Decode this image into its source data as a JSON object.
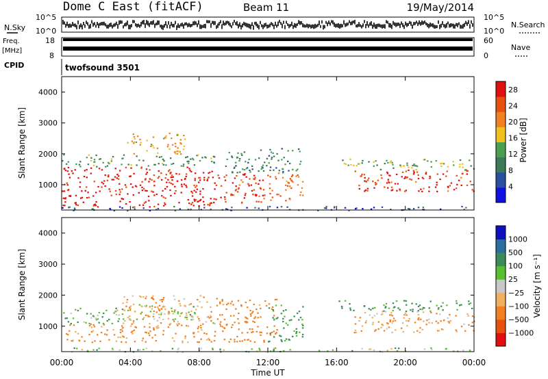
{
  "header": {
    "station": "Dome C East (fitACF)",
    "beam": "Beam 11",
    "date": "19/May/2014"
  },
  "noise_panel": {
    "left_label": "N.Sky",
    "right_label": "N.Search",
    "left_ticks": [
      "10^5",
      "10^0"
    ],
    "right_ticks": [
      "10^5",
      "10^0"
    ]
  },
  "freq_panel": {
    "left_label_top": "Freq.",
    "left_label_unit": "[MHz]",
    "right_label": "Nave",
    "left_ticks": [
      "18",
      "8"
    ],
    "right_ticks": [
      "60",
      "0"
    ]
  },
  "cpid": {
    "label": "CPID",
    "program": "twofsound 3501"
  },
  "colors": {
    "power_scale": [
      "#1010e0",
      "#2a4fa0",
      "#3c7a58",
      "#4aa050",
      "#f0c020",
      "#f08020",
      "#e85010",
      "#e01010"
    ],
    "velocity_scale": [
      "#e01010",
      "#e85010",
      "#f08020",
      "#f0b060",
      "#c8c8c8",
      "#58c030",
      "#3c8c5a",
      "#2a6fa0",
      "#1010c0"
    ]
  },
  "chart_data": [
    {
      "type": "heatmap",
      "panel": "power",
      "xlabel": "Time UT",
      "ylabel": "Slant Range [km]",
      "x_ticks": [
        "00:00",
        "04:00",
        "08:00",
        "12:00",
        "16:00",
        "20:00",
        "00:00"
      ],
      "x_range_hours": [
        0,
        24
      ],
      "y_ticks": [
        1000,
        2000,
        3000,
        4000
      ],
      "ylim": [
        180,
        4500
      ],
      "colorbar_label": "Power [dB]",
      "colorbar_ticks": [
        4,
        8,
        12,
        16,
        20,
        24,
        28
      ],
      "colorbar_range": [
        0,
        30
      ],
      "scatter_regions": [
        {
          "t_start": 0.0,
          "t_end": 9.0,
          "range_low": 300,
          "range_high": 1600,
          "value": 28
        },
        {
          "t_start": 0.0,
          "t_end": 9.0,
          "range_low": 1600,
          "range_high": 2000,
          "value": 12
        },
        {
          "t_start": 3.8,
          "t_end": 7.2,
          "range_low": 2000,
          "range_high": 2700,
          "value": 18
        },
        {
          "t_start": 9.0,
          "t_end": 12.0,
          "range_low": 400,
          "range_high": 1400,
          "value": 26
        },
        {
          "t_start": 9.5,
          "t_end": 14.0,
          "range_low": 1400,
          "range_high": 2200,
          "value": 10
        },
        {
          "t_start": 12.0,
          "t_end": 14.0,
          "range_low": 500,
          "range_high": 1400,
          "value": 22
        },
        {
          "t_start": 16.0,
          "t_end": 24.0,
          "range_low": 1500,
          "range_high": 1850,
          "value": 14
        },
        {
          "t_start": 17.0,
          "t_end": 24.0,
          "range_low": 800,
          "range_high": 1500,
          "value": 26
        },
        {
          "t_start": 0.0,
          "t_end": 24.0,
          "range_low": 180,
          "range_high": 320,
          "value": 6
        }
      ]
    },
    {
      "type": "heatmap",
      "panel": "velocity",
      "xlabel": "Time UT",
      "ylabel": "Slant Range [km]",
      "x_ticks": [
        "00:00",
        "04:00",
        "08:00",
        "12:00",
        "16:00",
        "20:00",
        "00:00"
      ],
      "x_range_hours": [
        0,
        24
      ],
      "y_ticks": [
        1000,
        2000,
        3000,
        4000
      ],
      "ylim": [
        180,
        4500
      ],
      "colorbar_label": "Velocity [m s⁻¹]",
      "colorbar_ticks": [
        "1000",
        "500",
        "100",
        "25",
        "−25",
        "−100",
        "−500",
        "−1000"
      ],
      "scatter_regions": [
        {
          "t_start": 0.0,
          "t_end": 9.0,
          "range_low": 500,
          "range_high": 1100,
          "value": -150
        },
        {
          "t_start": 0.0,
          "t_end": 3.5,
          "range_low": 1100,
          "range_high": 1600,
          "value": 80
        },
        {
          "t_start": 3.0,
          "t_end": 8.0,
          "range_low": 1200,
          "range_high": 1700,
          "value": 0
        },
        {
          "t_start": 3.5,
          "t_end": 9.0,
          "range_low": 1100,
          "range_high": 2000,
          "value": -80
        },
        {
          "t_start": 9.0,
          "t_end": 12.5,
          "range_low": 500,
          "range_high": 1900,
          "value": -200
        },
        {
          "t_start": 12.0,
          "t_end": 14.0,
          "range_low": 500,
          "range_high": 1700,
          "value": 150
        },
        {
          "t_start": 16.0,
          "t_end": 24.0,
          "range_low": 1500,
          "range_high": 1850,
          "value": 150
        },
        {
          "t_start": 17.0,
          "t_end": 24.0,
          "range_low": 800,
          "range_high": 1500,
          "value": -100
        },
        {
          "t_start": 0.0,
          "t_end": 24.0,
          "range_low": 180,
          "range_high": 320,
          "value": 30
        }
      ]
    }
  ]
}
